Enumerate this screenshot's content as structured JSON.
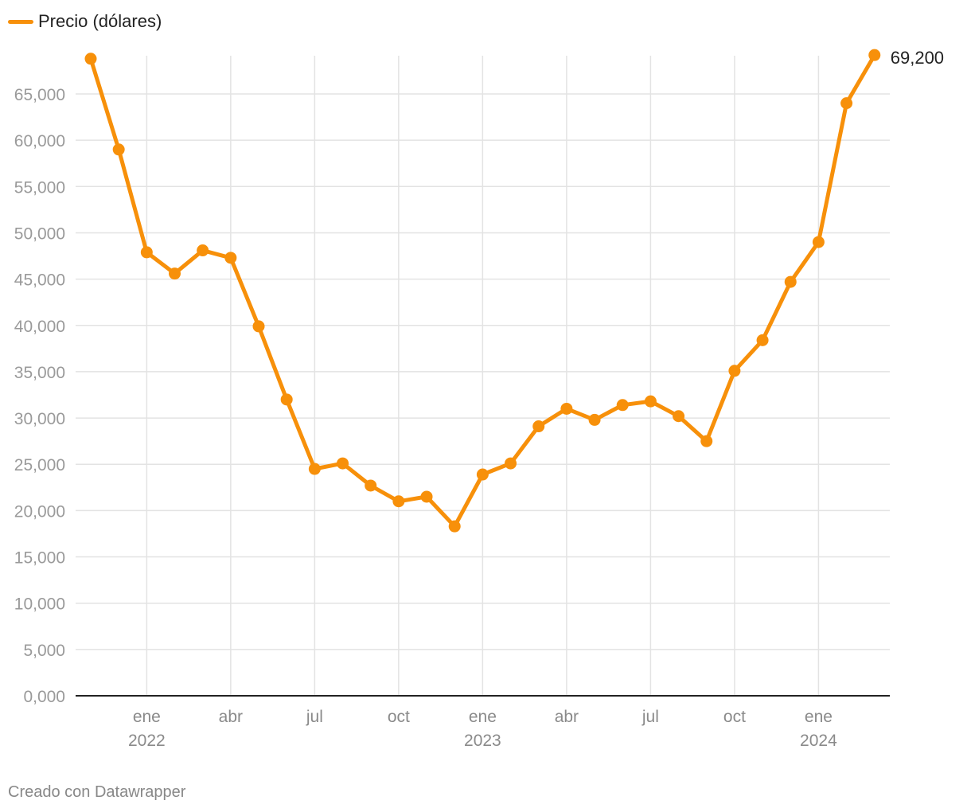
{
  "legend": {
    "label": "Precio (dólares)"
  },
  "colors": {
    "series": "#f7900a",
    "grid": "#e3e3e3",
    "axis": "#222222"
  },
  "footer": "Creado con Datawrapper",
  "chart_data": {
    "type": "line",
    "series": [
      {
        "name": "Precio (dólares)",
        "x": [
          "2021-11",
          "2021-12",
          "2022-01",
          "2022-02",
          "2022-03",
          "2022-04",
          "2022-05",
          "2022-06",
          "2022-07",
          "2022-08",
          "2022-09",
          "2022-10",
          "2022-11",
          "2022-12",
          "2023-01",
          "2023-02",
          "2023-03",
          "2023-04",
          "2023-05",
          "2023-06",
          "2023-07",
          "2023-08",
          "2023-09",
          "2023-10",
          "2023-11",
          "2023-12",
          "2024-01",
          "2024-02",
          "2024-03"
        ],
        "values": [
          68800,
          59000,
          47900,
          45600,
          48100,
          47300,
          39900,
          32000,
          24500,
          25100,
          22700,
          21000,
          21500,
          18300,
          23900,
          25100,
          29100,
          31000,
          29800,
          31400,
          31800,
          30200,
          27500,
          35100,
          38400,
          44700,
          49000,
          64000,
          69200
        ]
      }
    ],
    "ylim": [
      0,
      70000
    ],
    "yticks": [
      0,
      5000,
      10000,
      15000,
      20000,
      25000,
      30000,
      35000,
      40000,
      45000,
      50000,
      55000,
      60000,
      65000
    ],
    "ytick_labels": [
      "0,000",
      "5,000",
      "10,000",
      "15,000",
      "20,000",
      "25,000",
      "30,000",
      "35,000",
      "40,000",
      "45,000",
      "50,000",
      "55,000",
      "60,000",
      "65,000"
    ],
    "xticks": [
      {
        "x": "2022-01",
        "label": "ene",
        "year": "2022"
      },
      {
        "x": "2022-04",
        "label": "abr",
        "year": ""
      },
      {
        "x": "2022-07",
        "label": "jul",
        "year": ""
      },
      {
        "x": "2022-10",
        "label": "oct",
        "year": ""
      },
      {
        "x": "2023-01",
        "label": "ene",
        "year": "2023"
      },
      {
        "x": "2023-04",
        "label": "abr",
        "year": ""
      },
      {
        "x": "2023-07",
        "label": "jul",
        "year": ""
      },
      {
        "x": "2023-10",
        "label": "oct",
        "year": ""
      },
      {
        "x": "2024-01",
        "label": "ene",
        "year": "2024"
      }
    ],
    "end_label": "69,200",
    "grid": true,
    "legend_position": "top-left"
  }
}
